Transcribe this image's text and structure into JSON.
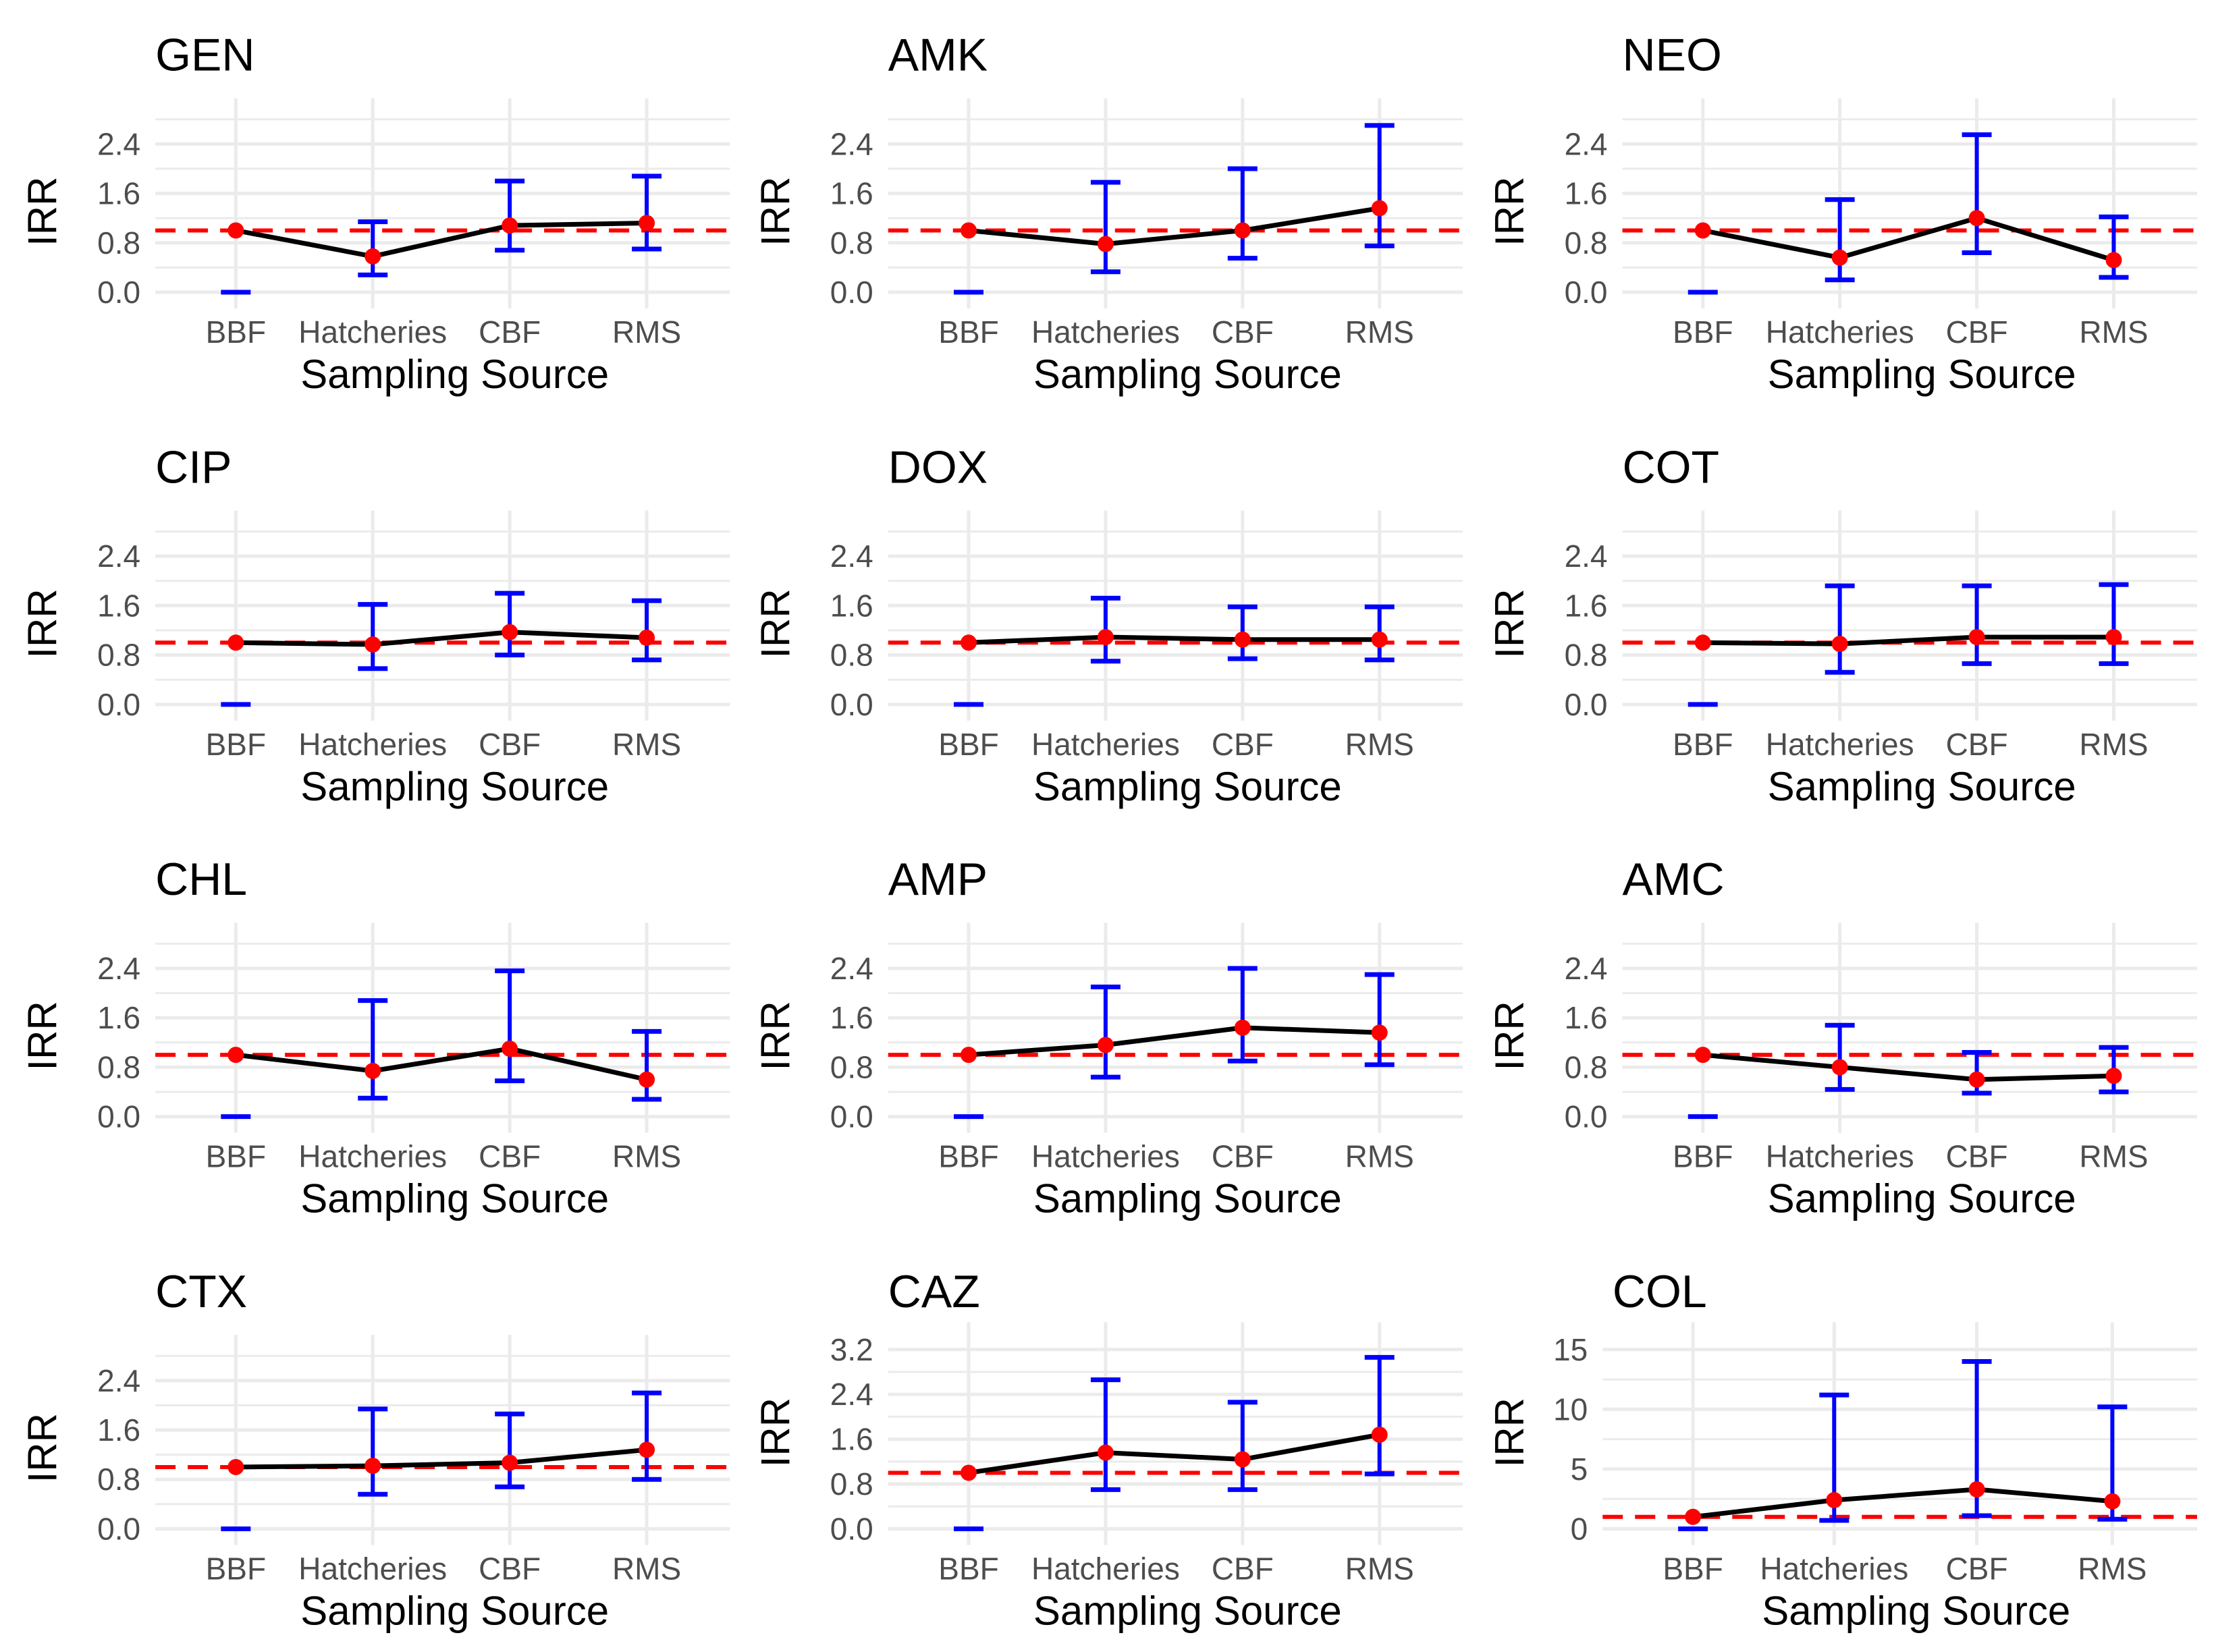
{
  "chart_data": [
    {
      "type": "line",
      "title": "GEN",
      "xlabel": "Sampling Source",
      "ylabel": "IRR",
      "categories": [
        "BBF",
        "Hatcheries",
        "CBF",
        "RMS"
      ],
      "ylim": [
        0,
        2.8
      ],
      "yticks": [
        "0.0",
        "0.8",
        "1.6",
        "2.4"
      ],
      "ytick_values": [
        0,
        0.8,
        1.6,
        2.4
      ],
      "reference_line": 1,
      "series": [
        {
          "name": "IRR",
          "values": [
            1.0,
            0.58,
            1.08,
            1.12
          ]
        },
        {
          "name": "CI lower",
          "values": [
            0.0,
            0.28,
            0.68,
            0.7
          ]
        },
        {
          "name": "CI upper",
          "values": [
            null,
            1.14,
            1.8,
            1.88
          ]
        }
      ]
    },
    {
      "type": "line",
      "title": "AMK",
      "xlabel": "Sampling Source",
      "ylabel": "IRR",
      "categories": [
        "BBF",
        "Hatcheries",
        "CBF",
        "RMS"
      ],
      "ylim": [
        0,
        2.8
      ],
      "yticks": [
        "0.0",
        "0.8",
        "1.6",
        "2.4"
      ],
      "ytick_values": [
        0,
        0.8,
        1.6,
        2.4
      ],
      "reference_line": 1,
      "series": [
        {
          "name": "IRR",
          "values": [
            1.0,
            0.78,
            1.0,
            1.36
          ]
        },
        {
          "name": "CI lower",
          "values": [
            0.0,
            0.33,
            0.55,
            0.75
          ]
        },
        {
          "name": "CI upper",
          "values": [
            null,
            1.78,
            2.0,
            2.7
          ]
        }
      ]
    },
    {
      "type": "line",
      "title": "NEO",
      "xlabel": "Sampling Source",
      "ylabel": "IRR",
      "categories": [
        "BBF",
        "Hatcheries",
        "CBF",
        "RMS"
      ],
      "ylim": [
        0,
        2.8
      ],
      "yticks": [
        "0.0",
        "0.8",
        "1.6",
        "2.4"
      ],
      "ytick_values": [
        0,
        0.8,
        1.6,
        2.4
      ],
      "reference_line": 1,
      "series": [
        {
          "name": "IRR",
          "values": [
            1.0,
            0.56,
            1.2,
            0.52
          ]
        },
        {
          "name": "CI lower",
          "values": [
            0.0,
            0.2,
            0.64,
            0.24
          ]
        },
        {
          "name": "CI upper",
          "values": [
            null,
            1.5,
            2.55,
            1.22
          ]
        }
      ]
    },
    {
      "type": "line",
      "title": "CIP",
      "xlabel": "Sampling Source",
      "ylabel": "IRR",
      "categories": [
        "BBF",
        "Hatcheries",
        "CBF",
        "RMS"
      ],
      "ylim": [
        0,
        2.8
      ],
      "yticks": [
        "0.0",
        "0.8",
        "1.6",
        "2.4"
      ],
      "ytick_values": [
        0,
        0.8,
        1.6,
        2.4
      ],
      "reference_line": 1,
      "series": [
        {
          "name": "IRR",
          "values": [
            1.0,
            0.97,
            1.17,
            1.08
          ]
        },
        {
          "name": "CI lower",
          "values": [
            0.0,
            0.58,
            0.8,
            0.72
          ]
        },
        {
          "name": "CI upper",
          "values": [
            null,
            1.62,
            1.8,
            1.68
          ]
        }
      ]
    },
    {
      "type": "line",
      "title": "DOX",
      "xlabel": "Sampling Source",
      "ylabel": "IRR",
      "categories": [
        "BBF",
        "Hatcheries",
        "CBF",
        "RMS"
      ],
      "ylim": [
        0,
        2.8
      ],
      "yticks": [
        "0.0",
        "0.8",
        "1.6",
        "2.4"
      ],
      "ytick_values": [
        0,
        0.8,
        1.6,
        2.4
      ],
      "reference_line": 1,
      "series": [
        {
          "name": "IRR",
          "values": [
            1.0,
            1.09,
            1.05,
            1.05
          ]
        },
        {
          "name": "CI lower",
          "values": [
            0.0,
            0.7,
            0.74,
            0.72
          ]
        },
        {
          "name": "CI upper",
          "values": [
            null,
            1.72,
            1.58,
            1.58
          ]
        }
      ]
    },
    {
      "type": "line",
      "title": "COT",
      "xlabel": "Sampling Source",
      "ylabel": "IRR",
      "categories": [
        "BBF",
        "Hatcheries",
        "CBF",
        "RMS"
      ],
      "ylim": [
        0,
        2.8
      ],
      "yticks": [
        "0.0",
        "0.8",
        "1.6",
        "2.4"
      ],
      "ytick_values": [
        0,
        0.8,
        1.6,
        2.4
      ],
      "reference_line": 1,
      "series": [
        {
          "name": "IRR",
          "values": [
            1.0,
            0.98,
            1.09,
            1.09
          ]
        },
        {
          "name": "CI lower",
          "values": [
            0.0,
            0.52,
            0.66,
            0.66
          ]
        },
        {
          "name": "CI upper",
          "values": [
            null,
            1.92,
            1.92,
            1.94
          ]
        }
      ]
    },
    {
      "type": "line",
      "title": "CHL",
      "xlabel": "Sampling Source",
      "ylabel": "IRR",
      "categories": [
        "BBF",
        "Hatcheries",
        "CBF",
        "RMS"
      ],
      "ylim": [
        0,
        2.8
      ],
      "yticks": [
        "0.0",
        "0.8",
        "1.6",
        "2.4"
      ],
      "ytick_values": [
        0,
        0.8,
        1.6,
        2.4
      ],
      "reference_line": 1,
      "series": [
        {
          "name": "IRR",
          "values": [
            1.0,
            0.74,
            1.1,
            0.6
          ]
        },
        {
          "name": "CI lower",
          "values": [
            0.0,
            0.3,
            0.58,
            0.28
          ]
        },
        {
          "name": "CI upper",
          "values": [
            null,
            1.88,
            2.36,
            1.38
          ]
        }
      ]
    },
    {
      "type": "line",
      "title": "AMP",
      "xlabel": "Sampling Source",
      "ylabel": "IRR",
      "categories": [
        "BBF",
        "Hatcheries",
        "CBF",
        "RMS"
      ],
      "ylim": [
        0,
        2.8
      ],
      "yticks": [
        "0.0",
        "0.8",
        "1.6",
        "2.4"
      ],
      "ytick_values": [
        0,
        0.8,
        1.6,
        2.4
      ],
      "reference_line": 1,
      "series": [
        {
          "name": "IRR",
          "values": [
            1.0,
            1.16,
            1.44,
            1.36
          ]
        },
        {
          "name": "CI lower",
          "values": [
            0.0,
            0.64,
            0.9,
            0.84
          ]
        },
        {
          "name": "CI upper",
          "values": [
            null,
            2.1,
            2.4,
            2.3
          ]
        }
      ]
    },
    {
      "type": "line",
      "title": "AMC",
      "xlabel": "Sampling Source",
      "ylabel": "IRR",
      "categories": [
        "BBF",
        "Hatcheries",
        "CBF",
        "RMS"
      ],
      "ylim": [
        0,
        2.8
      ],
      "yticks": [
        "0.0",
        "0.8",
        "1.6",
        "2.4"
      ],
      "ytick_values": [
        0,
        0.8,
        1.6,
        2.4
      ],
      "reference_line": 1,
      "series": [
        {
          "name": "IRR",
          "values": [
            1.0,
            0.8,
            0.6,
            0.66
          ]
        },
        {
          "name": "CI lower",
          "values": [
            0.0,
            0.44,
            0.38,
            0.4
          ]
        },
        {
          "name": "CI upper",
          "values": [
            null,
            1.48,
            1.04,
            1.12
          ]
        }
      ]
    },
    {
      "type": "line",
      "title": "CTX",
      "xlabel": "Sampling Source",
      "ylabel": "IRR",
      "categories": [
        "BBF",
        "Hatcheries",
        "CBF",
        "RMS"
      ],
      "ylim": [
        0,
        2.8
      ],
      "yticks": [
        "0.0",
        "0.8",
        "1.6",
        "2.4"
      ],
      "ytick_values": [
        0,
        0.8,
        1.6,
        2.4
      ],
      "reference_line": 1,
      "series": [
        {
          "name": "IRR",
          "values": [
            1.0,
            1.02,
            1.07,
            1.28
          ]
        },
        {
          "name": "CI lower",
          "values": [
            0.0,
            0.56,
            0.68,
            0.8
          ]
        },
        {
          "name": "CI upper",
          "values": [
            null,
            1.94,
            1.86,
            2.2
          ]
        }
      ]
    },
    {
      "type": "line",
      "title": "CAZ",
      "xlabel": "Sampling Source",
      "ylabel": "IRR",
      "categories": [
        "BBF",
        "Hatcheries",
        "CBF",
        "RMS"
      ],
      "ylim": [
        0,
        3.6
      ],
      "yticks": [
        "0.0",
        "0.8",
        "1.6",
        "2.4",
        "3.2"
      ],
      "ytick_values": [
        0,
        0.8,
        1.6,
        2.4,
        3.2
      ],
      "reference_line": 1,
      "series": [
        {
          "name": "IRR",
          "values": [
            1.0,
            1.36,
            1.24,
            1.68
          ]
        },
        {
          "name": "CI lower",
          "values": [
            0.0,
            0.7,
            0.7,
            0.98
          ]
        },
        {
          "name": "CI upper",
          "values": [
            null,
            2.66,
            2.26,
            3.06
          ]
        }
      ]
    },
    {
      "type": "line",
      "title": "COL",
      "xlabel": "Sampling Source",
      "ylabel": "IRR",
      "categories": [
        "BBF",
        "Hatcheries",
        "CBF",
        "RMS"
      ],
      "ylim": [
        0,
        16
      ],
      "yticks": [
        "0",
        "5",
        "10",
        "15"
      ],
      "ytick_values": [
        0,
        5,
        10,
        15
      ],
      "reference_line": 1,
      "series": [
        {
          "name": "IRR",
          "values": [
            1.0,
            2.4,
            3.3,
            2.3
          ]
        },
        {
          "name": "CI lower",
          "values": [
            0.0,
            0.7,
            1.1,
            0.8
          ]
        },
        {
          "name": "CI upper",
          "values": [
            null,
            11.2,
            14.0,
            10.2
          ]
        }
      ]
    }
  ],
  "colors": {
    "point": "#ff0000",
    "line": "#000000",
    "errorbar": "#0000ff",
    "reference": "#ff0000",
    "grid": "#ebebeb",
    "tick_text": "#4d4d4d"
  }
}
